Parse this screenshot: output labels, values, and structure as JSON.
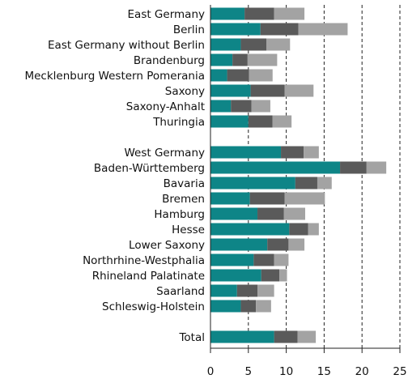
{
  "chart_data": {
    "type": "stacked_barh",
    "categories": [
      "East Germany",
      "Berlin",
      "East Germany without Berlin",
      "Brandenburg",
      "Mecklenburg Western Pomerania",
      "Saxony",
      "Saxony-Anhalt",
      "Thuringia",
      null,
      "West Germany",
      "Baden-Württemberg",
      "Bavaria",
      "Bremen",
      "Hamburg",
      "Hesse",
      "Lower Saxony",
      "Northrhine-Westphalia",
      "Rhineland Palatinate",
      "Saarland",
      "Schleswig-Holstein",
      null,
      "Total"
    ],
    "series": [
      {
        "color": "#0e8587",
        "values": [
          4.5,
          6.6,
          4.0,
          2.9,
          2.2,
          5.3,
          2.7,
          5.0,
          null,
          9.3,
          17.1,
          11.2,
          5.2,
          6.2,
          10.4,
          7.5,
          5.7,
          6.7,
          3.5,
          4.0,
          null,
          8.4
        ]
      },
      {
        "color": "#5a5a5a",
        "values": [
          3.9,
          5.0,
          3.4,
          2.0,
          2.9,
          4.5,
          2.7,
          3.2,
          null,
          3.0,
          3.5,
          2.9,
          4.6,
          3.5,
          2.5,
          2.8,
          2.7,
          2.4,
          2.7,
          2.0,
          null,
          3.1
        ]
      },
      {
        "color": "#a3a3a3",
        "values": [
          4.0,
          6.5,
          3.1,
          3.9,
          3.1,
          3.8,
          2.5,
          2.5,
          null,
          2.0,
          2.6,
          1.9,
          5.3,
          2.8,
          1.4,
          2.1,
          1.9,
          1.0,
          2.2,
          2.0,
          null,
          2.4
        ]
      }
    ],
    "xlim": [
      0,
      25
    ],
    "xticks": [
      0,
      5,
      10,
      15,
      20,
      25
    ],
    "grid": true
  }
}
